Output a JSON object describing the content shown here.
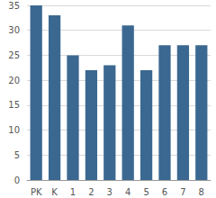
{
  "chart_data": {
    "type": "bar",
    "categories": [
      "PK",
      "K",
      "1",
      "2",
      "3",
      "4",
      "5",
      "6",
      "7",
      "8"
    ],
    "values": [
      35,
      33,
      25,
      22,
      23,
      31,
      22,
      27,
      27,
      27
    ],
    "color": "#3b6891",
    "ylim": [
      0,
      35
    ],
    "yticks": [
      0,
      5,
      10,
      15,
      20,
      25,
      30,
      35
    ],
    "grid": true
  }
}
